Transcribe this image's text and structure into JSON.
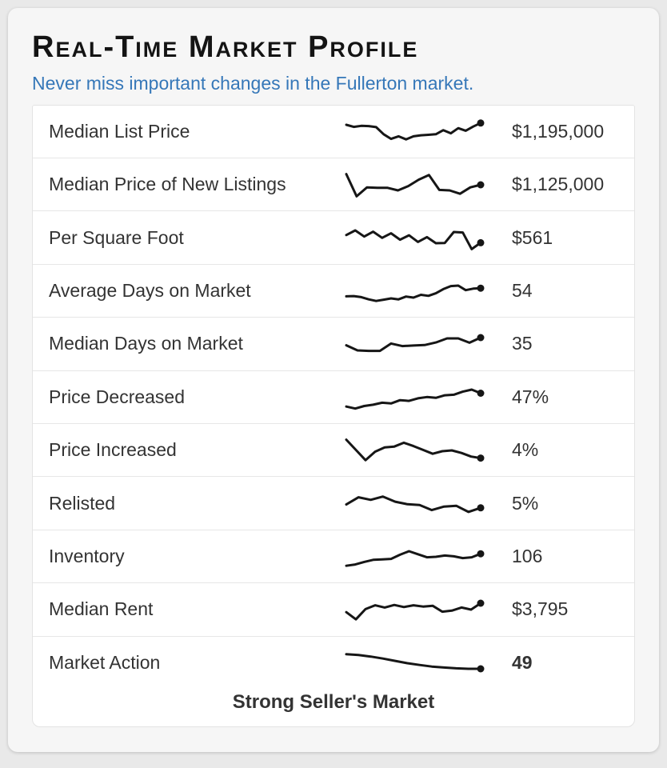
{
  "header": {
    "title": "Real-Time Market Profile",
    "subtitle": "Never miss important changes in the Fullerton market."
  },
  "footer": {
    "market_status": "Strong Seller's Market"
  },
  "colors": {
    "page_bg": "#e9e9e9",
    "card_bg": "#f6f6f6",
    "table_bg": "#ffffff",
    "subtitle_blue": "#3577b8",
    "text": "#333333",
    "sparkline": "#161616",
    "separator": "#e7e7e7"
  },
  "metrics": [
    {
      "label": "Median List Price",
      "value": "$1,195,000",
      "emphasis": false,
      "trend": [
        25,
        33,
        29,
        30,
        34,
        62,
        80,
        70,
        82,
        70,
        66,
        64,
        62,
        46,
        58,
        38,
        48,
        32,
        18
      ]
    },
    {
      "label": "Median Price of New Listings",
      "value": "$1,125,000",
      "emphasis": false,
      "trend": [
        8,
        95,
        60,
        62,
        62,
        72,
        55,
        30,
        12,
        70,
        72,
        85,
        60,
        50
      ]
    },
    {
      "label": "Per Square Foot",
      "value": "$561",
      "emphasis": false,
      "trend": [
        40,
        22,
        46,
        27,
        51,
        33,
        58,
        41,
        67,
        48,
        72,
        71,
        28,
        30,
        95,
        70
      ]
    },
    {
      "label": "Average Days on Market",
      "value": "54",
      "emphasis": false,
      "trend": [
        70,
        69,
        73,
        82,
        88,
        83,
        78,
        82,
        71,
        75,
        64,
        68,
        58,
        42,
        30,
        28,
        46,
        40,
        38
      ]
    },
    {
      "label": "Median Days on Market",
      "value": "35",
      "emphasis": false,
      "trend": [
        55,
        75,
        77,
        77,
        48,
        58,
        56,
        54,
        44,
        28,
        28,
        45,
        25
      ]
    },
    {
      "label": "Price Decreased",
      "value": "47%",
      "emphasis": false,
      "trend": [
        88,
        96,
        86,
        81,
        73,
        76,
        63,
        66,
        56,
        51,
        54,
        44,
        42,
        30,
        22,
        36
      ]
    },
    {
      "label": "Price Increased",
      "value": "4%",
      "emphasis": false,
      "trend": [
        8,
        48,
        88,
        55,
        38,
        35,
        20,
        33,
        48,
        63,
        53,
        50,
        60,
        74,
        80
      ]
    },
    {
      "label": "Relisted",
      "value": "5%",
      "emphasis": false,
      "trend": [
        55,
        27,
        37,
        24,
        44,
        54,
        57,
        77,
        63,
        60,
        84,
        68
      ]
    },
    {
      "label": "Inventory",
      "value": "106",
      "emphasis": false,
      "trend": [
        85,
        80,
        70,
        62,
        60,
        58,
        42,
        28,
        40,
        52,
        50,
        45,
        48,
        55,
        52,
        38
      ]
    },
    {
      "label": "Median Rent",
      "value": "$3,795",
      "emphasis": false,
      "trend": [
        60,
        88,
        48,
        33,
        42,
        32,
        40,
        33,
        38,
        35,
        58,
        54,
        42,
        50,
        25
      ]
    },
    {
      "label": "Market Action",
      "value": "49",
      "emphasis": true,
      "trend": [
        15,
        18,
        24,
        32,
        41,
        50,
        57,
        63,
        67,
        70,
        72,
        72
      ]
    }
  ]
}
